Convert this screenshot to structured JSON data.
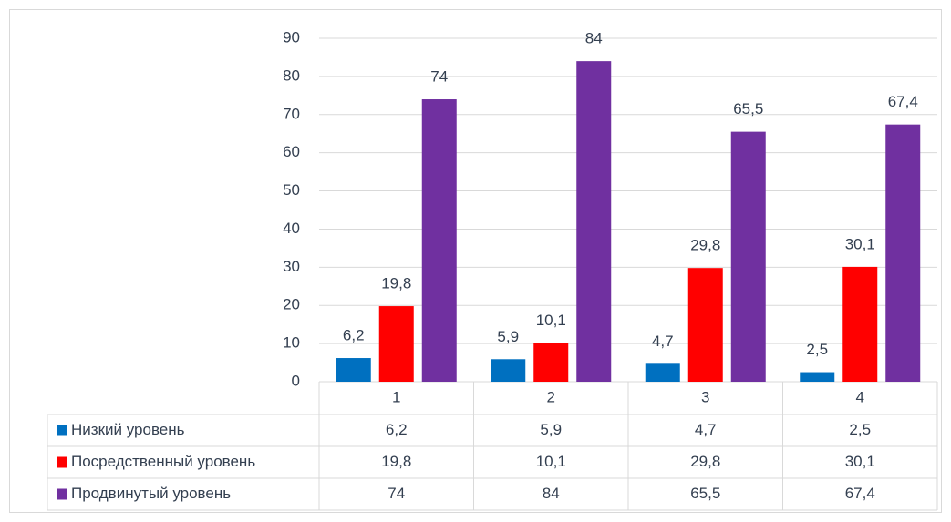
{
  "chart_data": {
    "type": "bar",
    "categories": [
      "1",
      "2",
      "3",
      "4"
    ],
    "series": [
      {
        "name": "Низкий уровень",
        "color": "#0070c0",
        "values": [
          6.2,
          5.9,
          4.7,
          2.5
        ],
        "value_labels": [
          "6,2",
          "5,9",
          "4,7",
          "2,5"
        ]
      },
      {
        "name": "Посредственный уровень",
        "color": "#ff0000",
        "values": [
          19.8,
          10.1,
          29.8,
          30.1
        ],
        "value_labels": [
          "19,8",
          "10,1",
          "29,8",
          "30,1"
        ]
      },
      {
        "name": "Продвинутый уровень",
        "color": "#7030a0",
        "values": [
          74,
          84,
          65.5,
          67.4
        ],
        "value_labels": [
          "74",
          "84",
          "65,5",
          "67,4"
        ]
      }
    ],
    "ylim": [
      0,
      90
    ],
    "yticks": [
      0,
      10,
      20,
      30,
      40,
      50,
      60,
      70,
      80,
      90
    ],
    "grid": true
  }
}
